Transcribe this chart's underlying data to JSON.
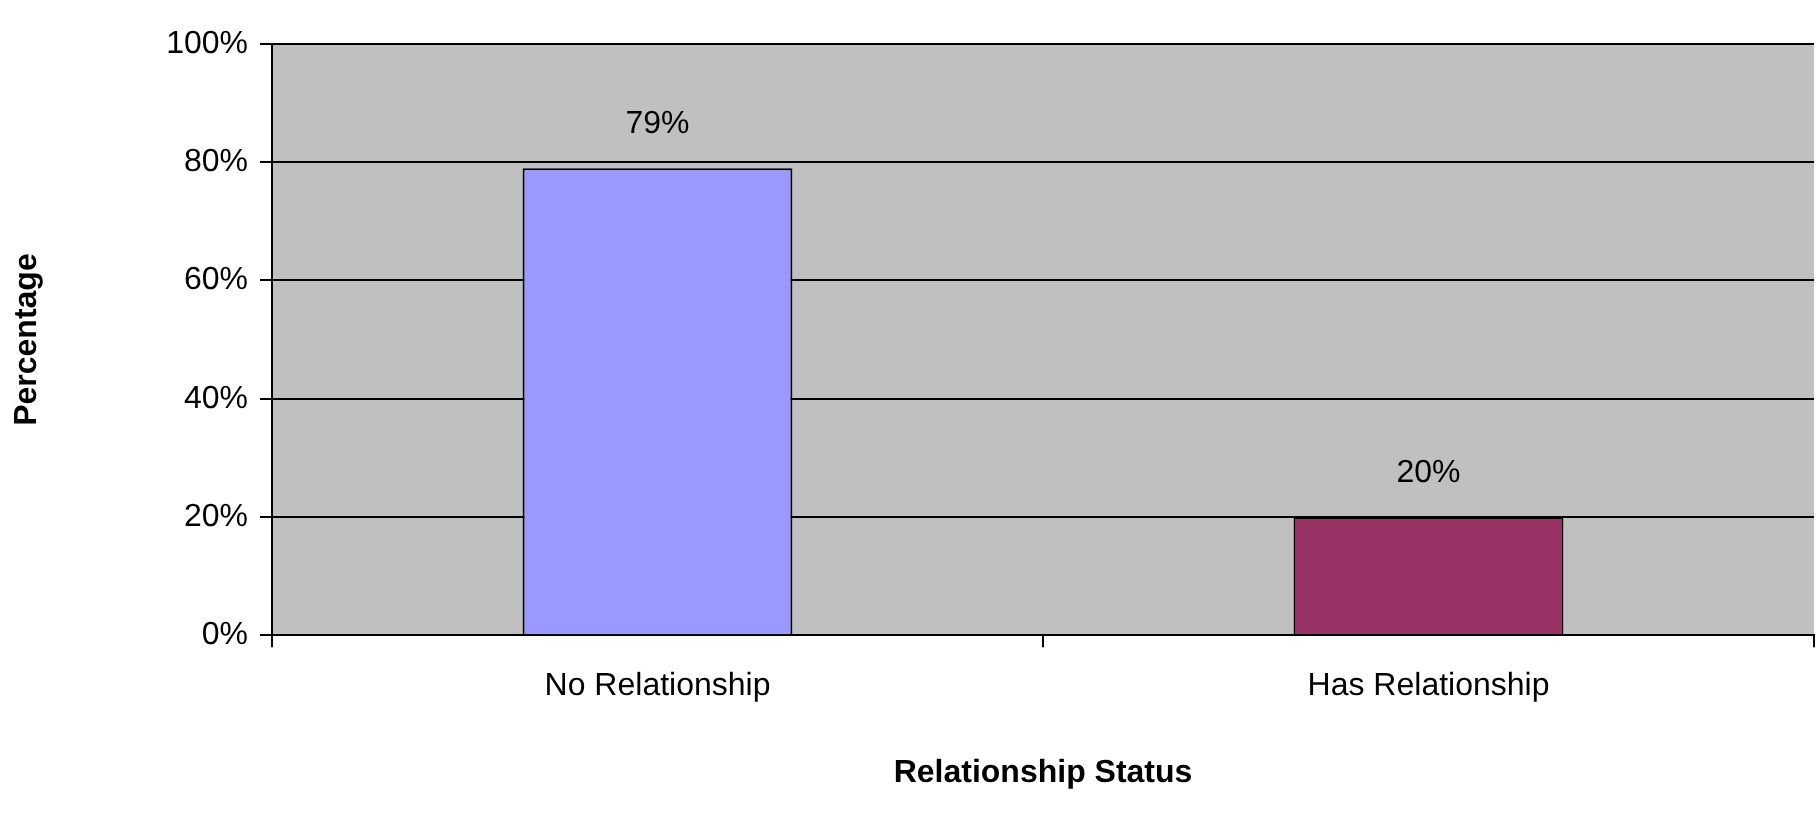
{
  "chart_data": {
    "type": "bar",
    "xlabel": "Relationship Status",
    "ylabel": "Percentage",
    "categories": [
      "No Relationship",
      "Has Relationship"
    ],
    "values": [
      79,
      20
    ],
    "colors": [
      "#9999ff",
      "#993366"
    ],
    "value_labels": [
      "79%",
      "20%"
    ],
    "ylim": [
      0,
      100
    ],
    "yticks": [
      {
        "value": 0,
        "label": "0%"
      },
      {
        "value": 20,
        "label": "20%"
      },
      {
        "value": 40,
        "label": "40%"
      },
      {
        "value": 60,
        "label": "60%"
      },
      {
        "value": 80,
        "label": "80%"
      },
      {
        "value": 100,
        "label": "100%"
      }
    ],
    "grid": "y",
    "legend": false
  }
}
